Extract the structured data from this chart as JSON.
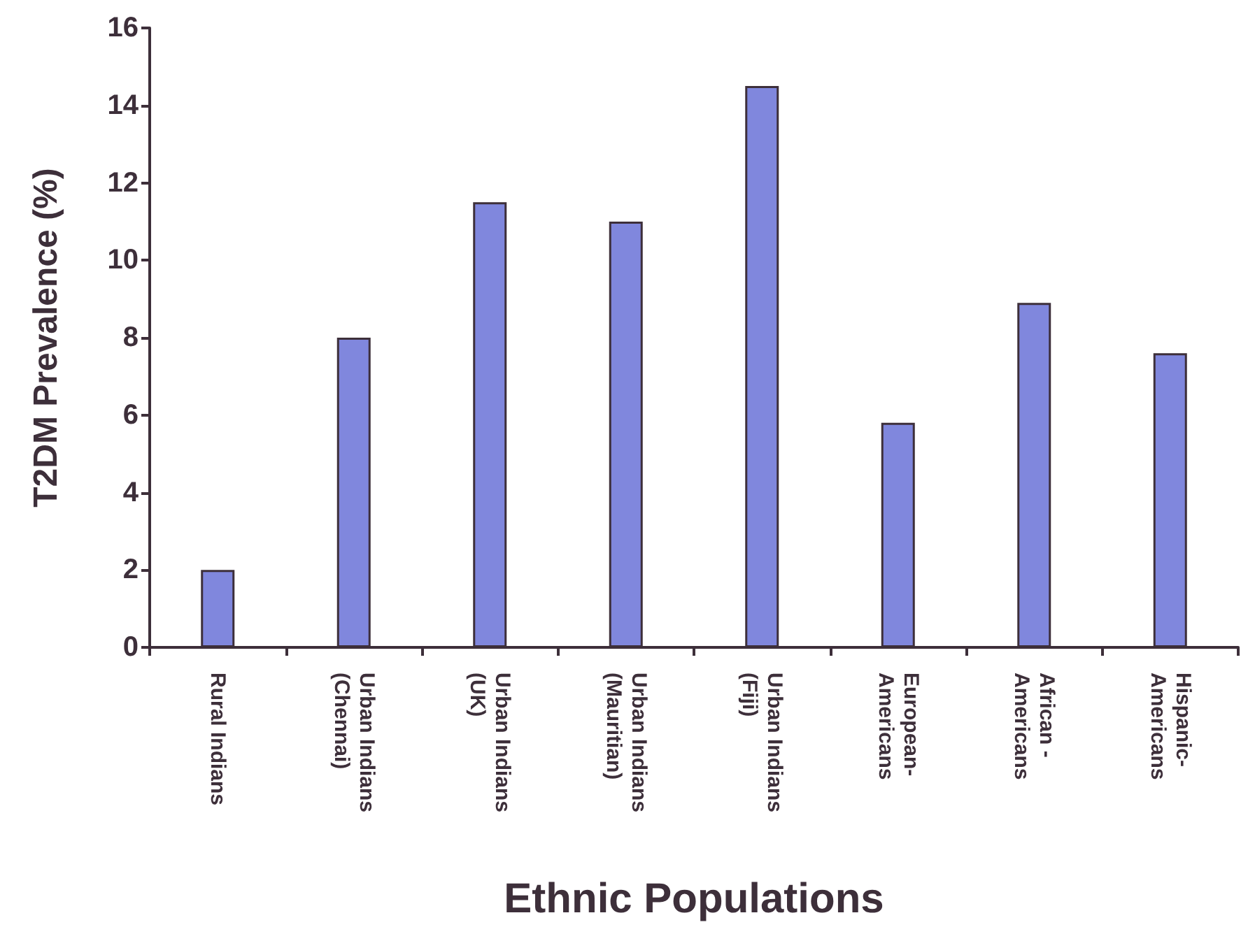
{
  "chart_data": {
    "type": "bar",
    "xlabel": "Ethnic Populations",
    "ylabel": "T2DM Prevalence (%)",
    "categories": [
      "Rural Indians",
      "Urban Indians\n(Chennai)",
      "Urban Indians\n(UK)",
      "Urban Indians\n(Mauritian)",
      "Urban Indians\n(Fiji)",
      "European-\nAmericans",
      "African -\nAmericans",
      "Hispanic-\nAmericans"
    ],
    "values": [
      2,
      8,
      11.5,
      11,
      14.5,
      5.8,
      8.9,
      7.6
    ],
    "color": "#8087dd",
    "ylim": [
      0,
      16
    ],
    "yticks": [
      0,
      2,
      4,
      6,
      8,
      10,
      12,
      14,
      16
    ],
    "grid": false
  }
}
